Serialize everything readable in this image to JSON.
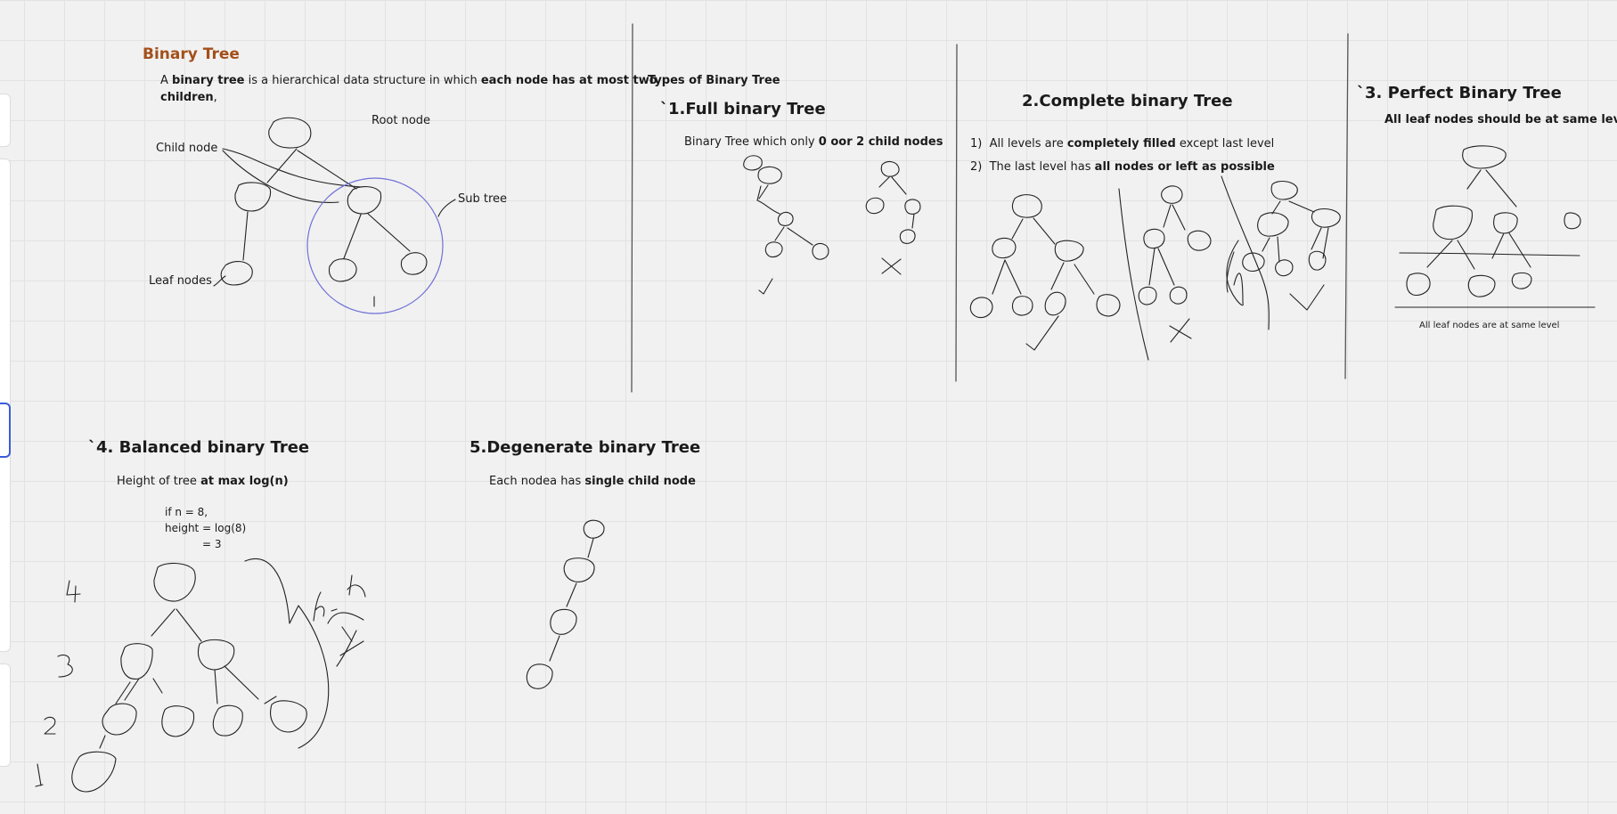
{
  "binary_tree": {
    "title": "Binary Tree",
    "def_p1": "A ",
    "def_b1": "binary tree",
    "def_p2": " is a hierarchical data structure in which ",
    "def_b2": "each node has at most two",
    "def_b3": "children",
    "def_p3": ",",
    "root_label": "Root node",
    "child_label": "Child node",
    "subtree_label": "Sub tree",
    "leaf_label": "Leaf nodes"
  },
  "types": {
    "heading": "Types of Binary Tree"
  },
  "full": {
    "title": "`1.Full binary Tree",
    "desc_p": "Binary Tree which only ",
    "desc_b": "0 oor 2 child nodes"
  },
  "complete": {
    "title": "2.Complete binary Tree",
    "r1_num": "1)",
    "r1_p1": "All levels are ",
    "r1_b": "completely filled",
    "r1_p2": " except last level",
    "r2_num": "2)",
    "r2_p1": "The last level has ",
    "r2_b": "all nodes or left as possible"
  },
  "perfect": {
    "title": "`3. Perfect Binary Tree",
    "desc": "All leaf nodes should be at same level",
    "note": "All leaf nodes are at same level"
  },
  "balanced": {
    "title": "`4. Balanced binary Tree",
    "desc_p": "Height of tree ",
    "desc_b": "at max log(n)",
    "calc1": "if n = 8,",
    "calc2": "height = log(8)",
    "calc3": "= 3"
  },
  "degenerate": {
    "title": "5.Degenerate binary Tree",
    "desc_p": "Each nodea has ",
    "desc_b": "single child node"
  },
  "colors": {
    "background": "#f1f1f1",
    "grid": "#e2e2e2",
    "ink": "#222222",
    "title_orange": "#a3501b",
    "circle_blue": "#7070d8",
    "selection_blue": "#3b5bdb"
  }
}
